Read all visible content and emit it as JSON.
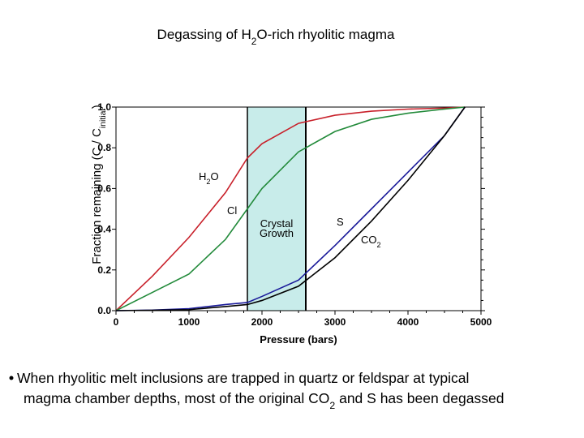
{
  "chart_data": {
    "type": "line",
    "title": [
      "Degassing of H",
      "2",
      "O-rich rhyolitic magma"
    ],
    "ylabel": [
      "Fraction remaining (C / C",
      "initial",
      ")"
    ],
    "xlabel": "Pressure (bars)",
    "x": [
      0,
      500,
      1000,
      1500,
      1800,
      2000,
      2500,
      3000,
      3500,
      4000,
      4500,
      4780
    ],
    "series": [
      {
        "label": [
          "H",
          "2",
          "O"
        ],
        "color": "#c8202a",
        "values": [
          0,
          0.17,
          0.36,
          0.58,
          0.75,
          0.82,
          0.92,
          0.96,
          0.98,
          0.99,
          0.995,
          1.0
        ]
      },
      {
        "label": [
          "Cl"
        ],
        "color": "#228a3a",
        "values": [
          0,
          0.09,
          0.18,
          0.35,
          0.5,
          0.6,
          0.78,
          0.88,
          0.94,
          0.97,
          0.99,
          1.0
        ]
      },
      {
        "label": [
          "S"
        ],
        "color": "#1a1a9a",
        "values": [
          0,
          0.003,
          0.01,
          0.03,
          0.04,
          0.07,
          0.15,
          0.32,
          0.5,
          0.68,
          0.86,
          1.0
        ]
      },
      {
        "label": [
          "CO",
          "2"
        ],
        "color": "#000000",
        "values": [
          0,
          0.002,
          0.005,
          0.02,
          0.03,
          0.05,
          0.12,
          0.26,
          0.44,
          0.64,
          0.86,
          1.0
        ]
      }
    ],
    "shade": {
      "range": [
        1800,
        2600
      ],
      "color": "#c8ecea",
      "label": [
        "Crystal",
        "Growth"
      ]
    },
    "xlim": [
      0,
      5000
    ],
    "xticks": [
      0,
      1000,
      2000,
      3000,
      4000,
      5000
    ],
    "ylim": [
      0,
      1
    ],
    "yticks": [
      {
        "value": 0,
        "label": "0.0"
      },
      {
        "value": 0.2,
        "label": "0.2"
      },
      {
        "value": 0.4,
        "label": "0.4"
      },
      {
        "value": 0.6,
        "label": "0.6"
      },
      {
        "value": 0.8,
        "label": "0.8"
      },
      {
        "value": 1,
        "label": "1.0"
      }
    ]
  },
  "bullet": {
    "line1": "When rhyolitic melt inclusions are trapped in quartz or feldspar at typical",
    "line2": [
      "magma chamber depths, most of the original CO",
      "2",
      " and S has been degassed"
    ]
  }
}
